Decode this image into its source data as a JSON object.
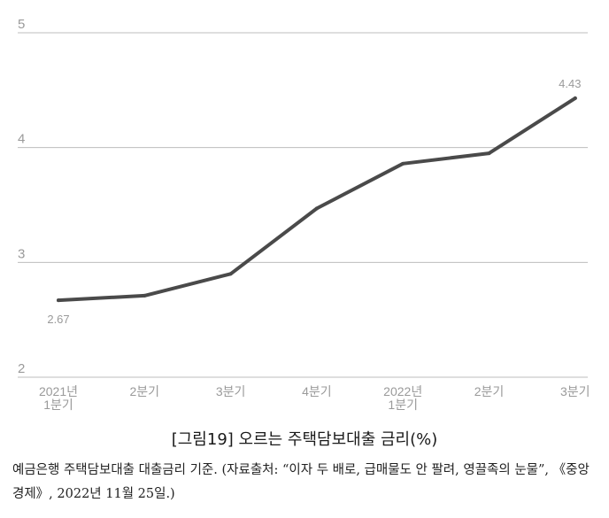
{
  "chart_data": {
    "type": "line",
    "categories": [
      "2021년\n1분기",
      "2분기",
      "3분기",
      "4분기",
      "2022년\n1분기",
      "2분기",
      "3분기"
    ],
    "series": [
      {
        "values": [
          2.67,
          2.71,
          2.9,
          3.47,
          3.86,
          3.95,
          4.43
        ]
      }
    ],
    "data_labels": {
      "first": "2.67",
      "last": "4.43"
    },
    "y_ticks": [
      "2",
      "3",
      "4",
      "5"
    ],
    "ylim": [
      2,
      5
    ],
    "grid": "horizontal",
    "line_color": "#4a4a4a",
    "grid_color": "#bdbdbd"
  },
  "caption": "[그림19] 오르는 주택담보대출 금리(%)",
  "source": "예금은행 주택담보대출 대출금리 기준. (자료출처: “이자 두 배로, 급매물도 안 팔려, 영끌족의 눈물”, 《중앙경제》, 2022년 11월 25일.)"
}
